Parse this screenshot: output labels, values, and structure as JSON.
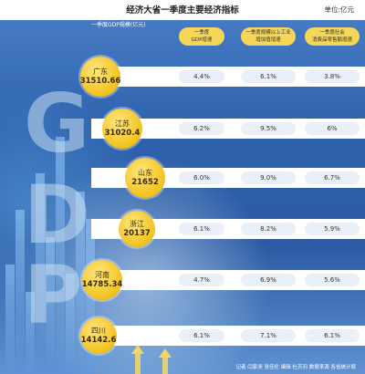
{
  "header": {
    "title": "经济大省一季度主要经济指标",
    "unit": "单位:亿元",
    "left_column_label": "一季度GDP规模(亿元)"
  },
  "columns": [
    {
      "label_line1": "一季度",
      "label_line2": "GDP增速"
    },
    {
      "label_line1": "一季度规模以上工业",
      "label_line2": "增加值增速"
    },
    {
      "label_line1": "一季度社会",
      "label_line2": "消费品零售额增速"
    }
  ],
  "background_letters": [
    "G",
    "D",
    "P"
  ],
  "footer": "记者 闫家尧 张佳伦  编辑 杜芳羽  数据来源 各省统计局",
  "chart_data": {
    "type": "table",
    "title": "经济大省一季度主要经济指标",
    "unit": "单位:亿元",
    "rows": [
      {
        "province": "广东",
        "gdp": "31510.66",
        "gdp_growth": "4.4%",
        "industry_growth": "6.1%",
        "retail_growth": "3.8%"
      },
      {
        "province": "江苏",
        "gdp": "31020.4",
        "gdp_growth": "6.2%",
        "industry_growth": "9.5%",
        "retail_growth": "6%"
      },
      {
        "province": "山东",
        "gdp": "21652",
        "gdp_growth": "6.0%",
        "industry_growth": "9.0%",
        "retail_growth": "6.7%"
      },
      {
        "province": "浙江",
        "gdp": "20137",
        "gdp_growth": "6.1%",
        "industry_growth": "8.2%",
        "retail_growth": "5.9%"
      },
      {
        "province": "河南",
        "gdp": "14785.34",
        "gdp_growth": "4.7%",
        "industry_growth": "6.9%",
        "retail_growth": "5.6%"
      },
      {
        "province": "四川",
        "gdp": "14142.6",
        "gdp_growth": "6.1%",
        "industry_growth": "7.1%",
        "retail_growth": "6.1%"
      }
    ],
    "colors": {
      "circle": "#f2c21c",
      "header_pill": "#f5d657",
      "background": "#2d5fa8"
    }
  }
}
